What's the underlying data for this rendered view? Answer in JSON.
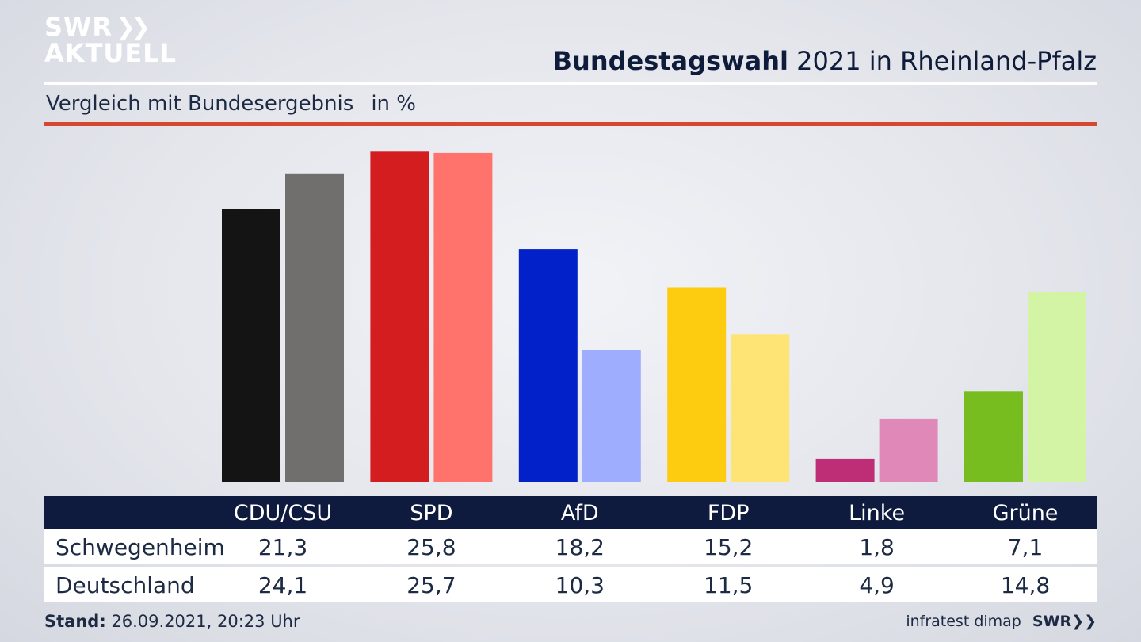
{
  "logo": {
    "line1": "SWR",
    "line2": "AKTUELL",
    "chevrons": "»"
  },
  "header": {
    "title_bold": "Bundestagswahl",
    "title_rest": "2021 in Rheinland-Pfalz",
    "subtitle": "Vergleich mit Bundesergebnis",
    "unit": "in %"
  },
  "chart_data": {
    "type": "bar",
    "categories": [
      "CDU/CSU",
      "SPD",
      "AfD",
      "FDP",
      "Linke",
      "Grüne"
    ],
    "series": [
      {
        "name": "Schwegenheim",
        "values": [
          21.3,
          25.8,
          18.2,
          15.2,
          1.8,
          7.1
        ],
        "colors": [
          "#141414",
          "#d41d1f",
          "#0321c8",
          "#fdcb10",
          "#be2e77",
          "#77bd1f"
        ]
      },
      {
        "name": "Deutschland",
        "values": [
          24.1,
          25.7,
          10.3,
          11.5,
          4.9,
          14.8
        ],
        "colors": [
          "#706f6d",
          "#ff736c",
          "#9eadfd",
          "#fde474",
          "#e089b8",
          "#d3f4a4"
        ]
      }
    ],
    "value_labels": [
      [
        "21,3",
        "25,8",
        "18,2",
        "15,2",
        "1,8",
        "7,1"
      ],
      [
        "24,1",
        "25,7",
        "10,3",
        "11,5",
        "4,9",
        "14,8"
      ]
    ],
    "ylim": [
      0,
      26.5
    ],
    "xlabel": "",
    "ylabel": ""
  },
  "footer": {
    "stand_label": "Stand:",
    "stand_value": "26.09.2021, 20:23 Uhr",
    "source": "infratest dimap",
    "brand": "SWR"
  }
}
